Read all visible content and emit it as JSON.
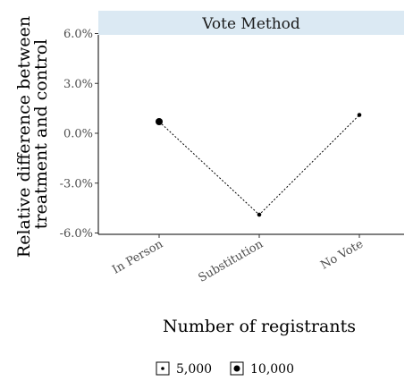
{
  "chart_data": {
    "type": "line",
    "facet_title": "Vote Method",
    "categories": [
      "In Person",
      "Substitution",
      "No Vote"
    ],
    "values": [
      0.7,
      -4.9,
      1.1
    ],
    "point_registrants": [
      10000,
      5000,
      5000
    ],
    "ylabel_lines": [
      "Relative difference between",
      "treatment and control"
    ],
    "xlabel": "Number of registrants",
    "y_ticks": [
      "6.0%",
      "3.0%",
      "0.0%",
      "-3.0%",
      "-6.0%"
    ],
    "y_tick_values": [
      6,
      3,
      0,
      -3,
      -6
    ],
    "ylim": [
      -6,
      6
    ],
    "legend": {
      "placement": "bottom",
      "items": [
        {
          "label": "5,000",
          "size": 5000
        },
        {
          "label": "10,000",
          "size": 10000
        }
      ]
    },
    "colors": {
      "strip": "#dbe9f3",
      "line": "#000000",
      "tick": "#4d4d4d"
    }
  }
}
